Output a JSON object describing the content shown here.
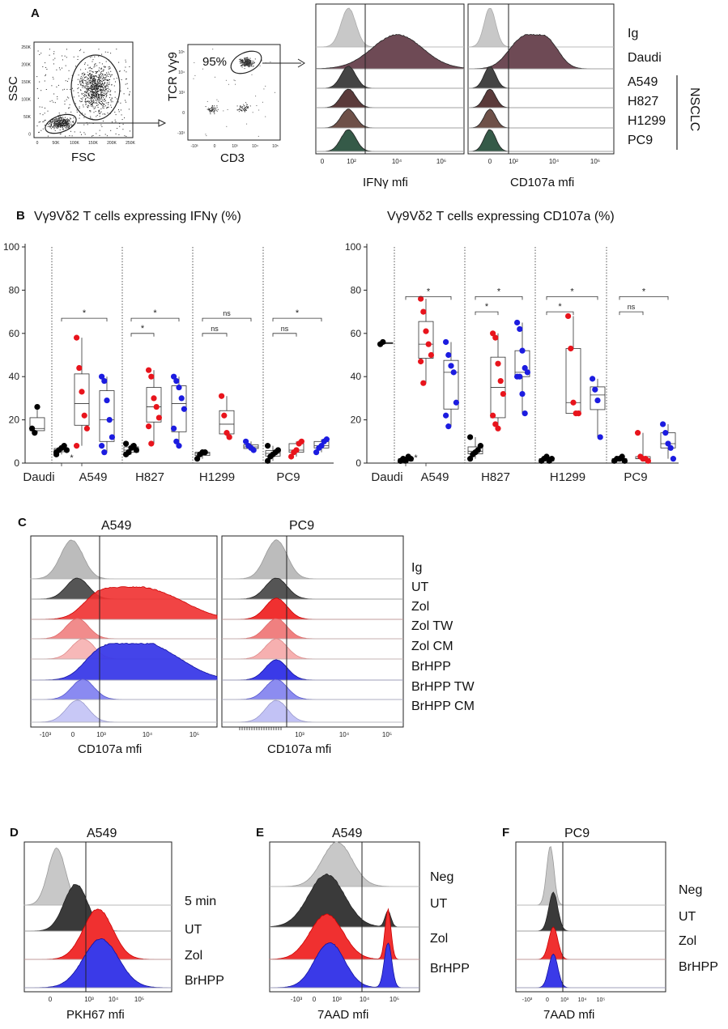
{
  "panel_letters": {
    "A": "A",
    "B": "B",
    "C": "C",
    "D": "D",
    "E": "E",
    "F": "F"
  },
  "panel_A": {
    "scatter1": {
      "ylabel": "SSC",
      "xlabel": "FSC",
      "yticks": [
        "250K",
        "200K",
        "150K",
        "100K",
        "50K",
        "0"
      ],
      "xticks": [
        "0",
        "50K",
        "100K",
        "150K",
        "200K",
        "250K"
      ]
    },
    "scatter2": {
      "ylabel": "TCR Vγ9",
      "xlabel": "CD3",
      "gate_percent": "95%",
      "yticks": [
        "10⁵",
        "10⁴",
        "10³",
        "0",
        "-10³"
      ],
      "xticks": [
        "-10³",
        "0",
        "10³",
        "10⁴",
        "10⁵"
      ]
    },
    "hist_ifng": {
      "xlabel": "IFNγ mfi",
      "xticks": [
        "0",
        "10²",
        "10⁴",
        "10⁶"
      ]
    },
    "hist_cd107a": {
      "xlabel": "CD107a mfi",
      "xticks": [
        "0",
        "10²",
        "10⁴",
        "10⁶"
      ]
    },
    "labels": [
      "Ig",
      "Daudi",
      "A549",
      "H827",
      "H1299",
      "PC9"
    ],
    "group_label": "NSCLC"
  },
  "chart_data": [
    {
      "type": "box",
      "title": "Vγ9Vδ2 T cells expressing IFNγ (%)",
      "categories": [
        "Daudi",
        "A549",
        "H827",
        "H1299",
        "PC9"
      ],
      "ylim": [
        0,
        100
      ],
      "yticks": [
        "0",
        "20",
        "40",
        "60",
        "80",
        "100"
      ],
      "significance": {
        "A549": [
          "*",
          "*"
        ],
        "H827": [
          "*",
          "*"
        ],
        "H1299": [
          "ns",
          "ns"
        ],
        "PC9": [
          "ns",
          "*"
        ]
      },
      "series": [
        {
          "name": "black",
          "color": "#000000",
          "points": {
            "Daudi": [
              16,
              14,
              26
            ],
            "A549": [
              5,
              6,
              7,
              8,
              6,
              4
            ],
            "H827": [
              4,
              5,
              7,
              8,
              6,
              9,
              5
            ],
            "H1299": [
              2,
              4,
              5,
              5
            ],
            "PC9": [
              1,
              3,
              4,
              5,
              6,
              8
            ]
          }
        },
        {
          "name": "red",
          "color": "#e8141c",
          "points": {
            "A549": [
              58,
              44,
              33,
              22,
              16,
              8
            ],
            "H827": [
              43,
              40,
              30,
              26,
              21,
              17,
              9
            ],
            "H1299": [
              31,
              22,
              14,
              12
            ],
            "PC9": [
              3,
              5,
              6,
              9,
              10
            ]
          }
        },
        {
          "name": "blue",
          "color": "#1c1ce0",
          "points": {
            "A549": [
              40,
              38,
              29,
              20,
              12,
              8,
              5
            ],
            "H827": [
              40,
              38,
              35,
              30,
              25,
              16,
              10,
              8
            ],
            "H1299": [
              10,
              8,
              7,
              6
            ],
            "PC9": [
              5,
              7,
              8,
              10,
              11
            ]
          }
        }
      ]
    },
    {
      "type": "box",
      "title": "Vγ9Vδ2 T cells expressing CD107a (%)",
      "categories": [
        "Daudi",
        "A549",
        "H827",
        "H1299",
        "PC9"
      ],
      "ylim": [
        0,
        100
      ],
      "yticks": [
        "0",
        "20",
        "40",
        "60",
        "80",
        "100"
      ],
      "significance": {
        "A549": [
          "*",
          "*"
        ],
        "H827": [
          "*",
          "*"
        ],
        "H1299": [
          "*",
          "*"
        ],
        "PC9": [
          "ns",
          "*"
        ]
      },
      "series": [
        {
          "name": "black",
          "color": "#000000",
          "points": {
            "Daudi": [
              55,
              56
            ],
            "A549": [
              1,
              2,
              1,
              3,
              2,
              1
            ],
            "H827": [
              2,
              4,
              5,
              6,
              8,
              12
            ],
            "H1299": [
              1,
              2,
              3,
              1,
              2
            ],
            "PC9": [
              1,
              2,
              2,
              3,
              1
            ]
          }
        },
        {
          "name": "red",
          "color": "#e8141c",
          "points": {
            "A549": [
              76,
              70,
              61,
              55,
              50,
              47,
              37
            ],
            "H827": [
              60,
              58,
              46,
              38,
              32,
              22,
              18,
              16
            ],
            "H1299": [
              68,
              53,
              28,
              23,
              23
            ],
            "PC9": [
              14,
              3,
              2,
              2,
              1
            ]
          }
        },
        {
          "name": "blue",
          "color": "#1c1ce0",
          "points": {
            "A549": [
              56,
              50,
              45,
              42,
              28,
              22,
              17
            ],
            "H827": [
              65,
              62,
              52,
              44,
              42,
              40,
              40,
              32,
              23
            ],
            "H1299": [
              39,
              34,
              29,
              12
            ],
            "PC9": [
              18,
              14,
              9,
              7,
              2
            ]
          }
        }
      ]
    }
  ],
  "panel_C": {
    "left_title": "A549",
    "right_title": "PC9",
    "xlabel": "CD107a mfi",
    "left_xticks": [
      "-10³",
      "0",
      "10³",
      "10⁴",
      "10⁵"
    ],
    "right_xticks": [
      "10³",
      "10⁴",
      "10⁵"
    ],
    "labels": [
      "Ig",
      "UT",
      "Zol",
      "Zol TW",
      "Zol CM",
      "BrHPP",
      "BrHPP TW",
      "BrHPP CM"
    ]
  },
  "panel_D": {
    "title": "A549",
    "xlabel": "PKH67 mfi",
    "xticks": [
      "0",
      "10³",
      "10⁴",
      "10⁵"
    ],
    "labels": [
      "5 min",
      "UT",
      "Zol",
      "BrHPP"
    ]
  },
  "panel_E": {
    "title": "A549",
    "xlabel": "7AAD mfi",
    "xticks": [
      "-10³",
      "0",
      "10³",
      "10⁴",
      "10⁵"
    ],
    "labels": [
      "Neg",
      "UT",
      "Zol",
      "BrHPP"
    ]
  },
  "panel_F": {
    "title": "PC9",
    "xlabel": "7AAD mfi",
    "xticks": [
      "-10³",
      "0",
      "10³",
      "10⁴",
      "10⁵"
    ],
    "labels": [
      "Neg",
      "UT",
      "Zol",
      "BrHPP"
    ]
  },
  "colors": {
    "grey": "#c8c8c8",
    "black": "#3a3a3a",
    "maroon": "#6e4a55",
    "red": "#f03030",
    "lightred": "#f6a0a0",
    "blue": "#3a3ae8",
    "lightblue": "#b8b8f0",
    "green": "#355a48"
  }
}
